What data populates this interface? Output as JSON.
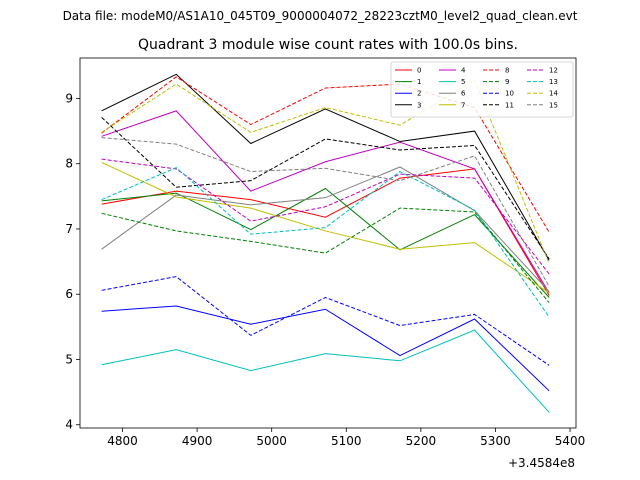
{
  "header": {
    "data_file": "Data file: modeM0/AS1A10_045T09_9000004072_28223cztM0_level2_quad_clean.evt"
  },
  "chart_data": {
    "type": "line",
    "title": "Quadrant 3 module wise count rates with 100.0s bins.",
    "xlabel": "",
    "ylabel": "",
    "x_offset_label": "+3.4584e8",
    "xlim": [
      4743,
      5408
    ],
    "ylim": [
      3.95,
      9.62
    ],
    "xticks": [
      4800,
      4900,
      5000,
      5100,
      5200,
      5300,
      5400
    ],
    "yticks": [
      4,
      5,
      6,
      7,
      8,
      9
    ],
    "x": [
      4772,
      4872,
      4972,
      5072,
      5172,
      5272,
      5372
    ],
    "grid": false,
    "legend_placement": "top-right",
    "legend_columns": 4,
    "series": [
      {
        "name": "0",
        "color": "#ff0000",
        "dash": "solid",
        "values": [
          7.38,
          7.58,
          7.45,
          7.18,
          7.78,
          7.92,
          5.98
        ]
      },
      {
        "name": "1",
        "color": "#008000",
        "dash": "solid",
        "values": [
          7.43,
          7.55,
          6.99,
          7.62,
          6.68,
          7.22,
          5.95
        ]
      },
      {
        "name": "2",
        "color": "#0000ff",
        "dash": "solid",
        "values": [
          5.74,
          5.82,
          5.54,
          5.77,
          5.06,
          5.62,
          4.52
        ]
      },
      {
        "name": "3",
        "color": "#000000",
        "dash": "solid",
        "values": [
          8.81,
          9.37,
          8.31,
          8.84,
          8.34,
          8.5,
          6.52
        ]
      },
      {
        "name": "4",
        "color": "#bf00bf",
        "dash": "solid",
        "values": [
          8.42,
          8.81,
          7.58,
          8.03,
          8.33,
          7.92,
          6.02
        ]
      },
      {
        "name": "5",
        "color": "#00bfbf",
        "dash": "solid",
        "values": [
          4.92,
          5.15,
          4.83,
          5.09,
          4.98,
          5.45,
          4.19
        ]
      },
      {
        "name": "6",
        "color": "#808080",
        "dash": "solid",
        "values": [
          6.69,
          7.52,
          7.37,
          7.48,
          7.95,
          7.28,
          6.04
        ]
      },
      {
        "name": "7",
        "color": "#bfbf00",
        "dash": "solid",
        "values": [
          8.02,
          7.49,
          7.32,
          6.97,
          6.69,
          6.79,
          6.02
        ]
      },
      {
        "name": "8",
        "color": "#ff0000",
        "dash": "dashed",
        "values": [
          8.47,
          9.33,
          8.6,
          9.16,
          9.22,
          8.86,
          6.95
        ]
      },
      {
        "name": "9",
        "color": "#008000",
        "dash": "dashed",
        "values": [
          7.24,
          6.97,
          6.81,
          6.63,
          7.32,
          7.26,
          5.87
        ]
      },
      {
        "name": "10",
        "color": "#0000ff",
        "dash": "dashed",
        "values": [
          6.06,
          6.27,
          5.37,
          5.95,
          5.52,
          5.69,
          4.91
        ]
      },
      {
        "name": "11",
        "color": "#000000",
        "dash": "dashed",
        "values": [
          8.71,
          7.64,
          7.74,
          8.38,
          8.21,
          8.28,
          6.54
        ]
      },
      {
        "name": "12",
        "color": "#bf00bf",
        "dash": "dashed",
        "values": [
          8.07,
          7.92,
          7.12,
          7.34,
          7.84,
          7.78,
          6.31
        ]
      },
      {
        "name": "13",
        "color": "#00bfbf",
        "dash": "dashed",
        "values": [
          7.45,
          7.94,
          6.92,
          7.02,
          7.88,
          7.29,
          5.65
        ]
      },
      {
        "name": "14",
        "color": "#bfbf00",
        "dash": "dashed",
        "values": [
          8.48,
          9.22,
          8.48,
          8.86,
          8.59,
          9.28,
          6.47
        ]
      },
      {
        "name": "15",
        "color": "#808080",
        "dash": "dashed",
        "values": [
          8.4,
          8.3,
          7.88,
          7.93,
          7.74,
          8.12,
          6.12
        ]
      }
    ]
  }
}
